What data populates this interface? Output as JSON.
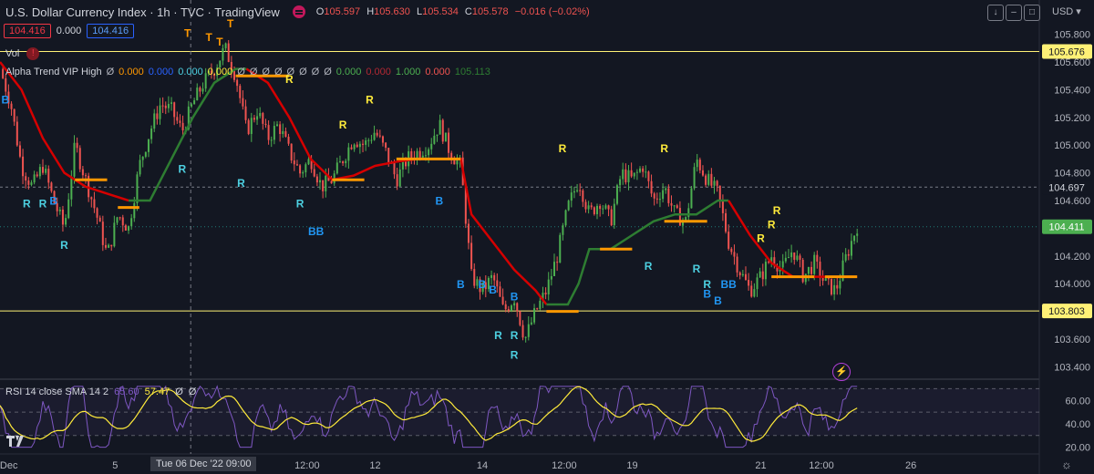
{
  "header": {
    "title": "U.S. Dollar Currency Index · 1h · TVC · TradingView",
    "open": "105.597",
    "high": "105.630",
    "low": "105.534",
    "close": "105.578",
    "change": "−0.016 (−0.02%)",
    "o_label": "O",
    "h_label": "H",
    "l_label": "L",
    "c_label": "C",
    "currency": "USD"
  },
  "row2": {
    "price_left": "104.416",
    "mid": "0.000",
    "price_right": "104.416"
  },
  "vol": {
    "label": "Vol",
    "warn": "!"
  },
  "alpha": {
    "label": "Alpha Trend VIP High",
    "values": [
      {
        "v": "Ø",
        "c": "#b2b5be"
      },
      {
        "v": "0.000",
        "c": "#ff9800"
      },
      {
        "v": "0.000",
        "c": "#2962ff"
      },
      {
        "v": "0.000",
        "c": "#4dd0e1"
      },
      {
        "v": "0.000",
        "c": "#ffeb3b"
      },
      {
        "v": "Ø",
        "c": "#b2b5be"
      },
      {
        "v": "Ø",
        "c": "#b2b5be"
      },
      {
        "v": "Ø",
        "c": "#b2b5be"
      },
      {
        "v": "Ø",
        "c": "#b2b5be"
      },
      {
        "v": "Ø",
        "c": "#b2b5be"
      },
      {
        "v": "Ø",
        "c": "#b2b5be"
      },
      {
        "v": "Ø",
        "c": "#b2b5be"
      },
      {
        "v": "Ø",
        "c": "#b2b5be"
      },
      {
        "v": "0.000",
        "c": "#4caf50"
      },
      {
        "v": "0.000",
        "c": "#b22833"
      },
      {
        "v": "1.000",
        "c": "#4caf50"
      },
      {
        "v": "0.000",
        "c": "#ef5350"
      },
      {
        "v": "105.113",
        "c": "#2e7d32"
      }
    ]
  },
  "rsi": {
    "label": "RSI 14 close SMA 14 2",
    "v1": "65.60",
    "v2": "57.47",
    "v3": "Ø",
    "v4": "Ø",
    "ticks": [
      "60.00",
      "40.00",
      "20.00"
    ],
    "levels": [
      70,
      50,
      30
    ],
    "range": [
      15,
      75
    ]
  },
  "price_axis": {
    "ticks": [
      "105.800",
      "105.600",
      "105.400",
      "105.200",
      "105.000",
      "104.800",
      "104.600",
      "104.400",
      "104.200",
      "104.000",
      "103.800",
      "103.600",
      "103.400"
    ],
    "tick_values": [
      105.8,
      105.6,
      105.4,
      105.2,
      105.0,
      104.8,
      104.6,
      104.4,
      104.2,
      104.0,
      103.8,
      103.6,
      103.4
    ],
    "min": 103.35,
    "max": 105.85
  },
  "price_labels": [
    {
      "text": "105.676",
      "value": 105.676,
      "style": "yellow"
    },
    {
      "text": "104.697",
      "value": 104.697,
      "style": "dark"
    },
    {
      "text": "104.411",
      "value": 104.411,
      "style": "green"
    },
    {
      "text": "103.803",
      "value": 103.803,
      "style": "yellow"
    }
  ],
  "time_axis": {
    "labels": [
      {
        "t": "Dec",
        "x": 0.5
      },
      {
        "t": "5",
        "x": 11
      },
      {
        "t": "12:00",
        "x": 28
      },
      {
        "t": "12",
        "x": 35
      },
      {
        "t": "14",
        "x": 45
      },
      {
        "t": "12:00",
        "x": 52
      },
      {
        "t": "19",
        "x": 59
      },
      {
        "t": "21",
        "x": 71
      },
      {
        "t": "12:00",
        "x": 76
      },
      {
        "t": "26",
        "x": 85
      }
    ],
    "selected": "Tue 06 Dec '22  09:00",
    "crosshair_x": 17.8,
    "range": [
      0,
      97
    ]
  },
  "chart_data": {
    "type": "candlestick",
    "title": "U.S. Dollar Currency Index · 1h · TVC · TradingView",
    "xlabel": "",
    "ylabel": "",
    "ylim": [
      103.35,
      105.85
    ],
    "x_unit": "trading-hour index",
    "horizontal_lines": [
      105.676,
      103.803
    ],
    "close_path": [
      [
        0,
        105.55
      ],
      [
        1,
        105.3
      ],
      [
        2,
        104.85
      ],
      [
        3,
        104.7
      ],
      [
        4,
        104.85
      ],
      [
        5,
        104.6
      ],
      [
        6,
        104.4
      ],
      [
        7,
        105.0
      ],
      [
        8,
        104.75
      ],
      [
        9,
        104.5
      ],
      [
        10,
        104.2
      ],
      [
        11,
        104.5
      ],
      [
        12,
        104.4
      ],
      [
        13,
        104.85
      ],
      [
        14,
        105.1
      ],
      [
        15,
        105.3
      ],
      [
        16,
        105.25
      ],
      [
        17,
        105.1
      ],
      [
        18,
        105.3
      ],
      [
        19,
        105.45
      ],
      [
        20,
        105.55
      ],
      [
        21,
        105.7
      ],
      [
        22,
        105.5
      ],
      [
        23,
        105.1
      ],
      [
        24,
        105.25
      ],
      [
        25,
        105.05
      ],
      [
        26,
        105.15
      ],
      [
        27,
        104.95
      ],
      [
        28,
        104.8
      ],
      [
        29,
        104.9
      ],
      [
        30,
        104.7
      ],
      [
        31,
        104.75
      ],
      [
        32,
        104.9
      ],
      [
        33,
        105.05
      ],
      [
        34,
        105.0
      ],
      [
        35,
        105.1
      ],
      [
        36,
        104.95
      ],
      [
        37,
        104.75
      ],
      [
        38,
        104.9
      ],
      [
        39,
        104.95
      ],
      [
        40,
        105.0
      ],
      [
        41,
        105.15
      ],
      [
        42,
        104.95
      ],
      [
        43,
        104.85
      ],
      [
        44,
        104.05
      ],
      [
        45,
        103.95
      ],
      [
        46,
        104.05
      ],
      [
        47,
        103.8
      ],
      [
        48,
        103.9
      ],
      [
        49,
        103.6
      ],
      [
        50,
        103.8
      ],
      [
        51,
        103.95
      ],
      [
        52,
        104.2
      ],
      [
        53,
        104.55
      ],
      [
        54,
        104.75
      ],
      [
        55,
        104.5
      ],
      [
        56,
        104.6
      ],
      [
        57,
        104.45
      ],
      [
        58,
        104.8
      ],
      [
        59,
        104.75
      ],
      [
        60,
        104.85
      ],
      [
        61,
        104.6
      ],
      [
        62,
        104.7
      ],
      [
        63,
        104.5
      ],
      [
        64,
        104.45
      ],
      [
        65,
        104.9
      ],
      [
        66,
        104.75
      ],
      [
        67,
        104.65
      ],
      [
        68,
        104.3
      ],
      [
        69,
        104.1
      ],
      [
        70,
        103.95
      ],
      [
        71,
        104.05
      ],
      [
        72,
        104.2
      ],
      [
        73,
        104.1
      ],
      [
        74,
        104.25
      ],
      [
        75,
        104.05
      ],
      [
        76,
        104.15
      ],
      [
        77,
        104.0
      ],
      [
        78,
        103.95
      ],
      [
        79,
        104.2
      ],
      [
        80,
        104.42
      ]
    ],
    "x_scale_max": 97,
    "alpha_trend_line": {
      "red": [
        [
          0,
          105.6
        ],
        [
          2,
          105.4
        ],
        [
          4,
          105.05
        ],
        [
          6,
          104.8
        ],
        [
          8,
          104.7
        ],
        [
          10,
          104.65
        ],
        [
          12,
          104.6
        ]
      ],
      "green": [
        [
          12,
          104.6
        ],
        [
          14,
          104.6
        ],
        [
          16,
          104.9
        ],
        [
          18,
          105.2
        ],
        [
          20,
          105.45
        ],
        [
          22,
          105.55
        ],
        [
          23,
          105.55
        ]
      ],
      "red2": [
        [
          23,
          105.55
        ],
        [
          25,
          105.45
        ],
        [
          27,
          105.2
        ],
        [
          29,
          104.9
        ],
        [
          31,
          104.75
        ],
        [
          33,
          104.78
        ],
        [
          35,
          104.85
        ],
        [
          37,
          104.88
        ],
        [
          39,
          104.9
        ],
        [
          41,
          104.9
        ],
        [
          43,
          104.9
        ],
        [
          44,
          104.5
        ],
        [
          46,
          104.3
        ],
        [
          48,
          104.1
        ],
        [
          50,
          103.95
        ],
        [
          51,
          103.85
        ]
      ],
      "green2": [
        [
          51,
          103.85
        ],
        [
          53,
          103.85
        ],
        [
          54,
          104.0
        ],
        [
          55,
          104.25
        ],
        [
          57,
          104.25
        ],
        [
          59,
          104.35
        ],
        [
          61,
          104.45
        ],
        [
          63,
          104.5
        ],
        [
          65,
          104.5
        ],
        [
          67,
          104.6
        ],
        [
          68,
          104.6
        ]
      ],
      "red3": [
        [
          68,
          104.6
        ],
        [
          70,
          104.35
        ],
        [
          72,
          104.15
        ],
        [
          74,
          104.05
        ],
        [
          76,
          104.05
        ],
        [
          78,
          104.05
        ],
        [
          80,
          104.05
        ]
      ]
    },
    "orange_levels": [
      [
        7,
        104.75,
        10,
        104.75
      ],
      [
        11,
        104.55,
        13,
        104.55
      ],
      [
        22,
        105.5,
        27,
        105.5
      ],
      [
        31,
        104.75,
        34,
        104.75
      ],
      [
        37,
        104.9,
        43,
        104.9
      ],
      [
        51,
        103.8,
        54,
        103.8
      ],
      [
        56,
        104.25,
        59,
        104.25
      ],
      [
        62,
        104.45,
        66,
        104.45
      ],
      [
        72,
        104.05,
        76,
        104.05
      ],
      [
        77,
        104.05,
        80,
        104.05
      ]
    ],
    "markers": [
      {
        "t": "B",
        "x": 0.5,
        "y": 105.3,
        "c": "#2196f3"
      },
      {
        "t": "R",
        "x": 2.5,
        "y": 104.55,
        "c": "#4dd0e1"
      },
      {
        "t": "R",
        "x": 4,
        "y": 104.55,
        "c": "#4dd0e1"
      },
      {
        "t": "B",
        "x": 5,
        "y": 104.57,
        "c": "#2196f3"
      },
      {
        "t": "R",
        "x": 6,
        "y": 104.25,
        "c": "#4dd0e1"
      },
      {
        "t": "T",
        "x": 17.5,
        "y": 105.78,
        "c": "#ff9800"
      },
      {
        "t": "T",
        "x": 19.5,
        "y": 105.75,
        "c": "#ff9800"
      },
      {
        "t": "T",
        "x": 20.5,
        "y": 105.72,
        "c": "#ff9800"
      },
      {
        "t": "T",
        "x": 21.5,
        "y": 105.85,
        "c": "#ff9800"
      },
      {
        "t": "R",
        "x": 17,
        "y": 104.8,
        "c": "#4dd0e1"
      },
      {
        "t": "R",
        "x": 22.5,
        "y": 104.7,
        "c": "#4dd0e1"
      },
      {
        "t": "R",
        "x": 27,
        "y": 105.45,
        "c": "#ffeb3b"
      },
      {
        "t": "R",
        "x": 28,
        "y": 104.55,
        "c": "#4dd0e1"
      },
      {
        "t": "R",
        "x": 32,
        "y": 105.12,
        "c": "#ffeb3b"
      },
      {
        "t": "R",
        "x": 34.5,
        "y": 105.3,
        "c": "#ffeb3b"
      },
      {
        "t": "BB",
        "x": 29.5,
        "y": 104.35,
        "c": "#2196f3"
      },
      {
        "t": "B",
        "x": 41,
        "y": 104.57,
        "c": "#2196f3"
      },
      {
        "t": "B",
        "x": 43,
        "y": 103.97,
        "c": "#2196f3"
      },
      {
        "t": "B",
        "x": 45,
        "y": 103.97,
        "c": "#2196f3"
      },
      {
        "t": "B",
        "x": 46,
        "y": 103.93,
        "c": "#2196f3"
      },
      {
        "t": "B",
        "x": 48,
        "y": 103.88,
        "c": "#2196f3"
      },
      {
        "t": "R",
        "x": 46.5,
        "y": 103.6,
        "c": "#4dd0e1"
      },
      {
        "t": "R",
        "x": 48,
        "y": 103.6,
        "c": "#4dd0e1"
      },
      {
        "t": "R",
        "x": 48,
        "y": 103.46,
        "c": "#4dd0e1"
      },
      {
        "t": "R",
        "x": 52.5,
        "y": 104.95,
        "c": "#ffeb3b"
      },
      {
        "t": "R",
        "x": 62,
        "y": 104.95,
        "c": "#ffeb3b"
      },
      {
        "t": "R",
        "x": 60.5,
        "y": 104.1,
        "c": "#4dd0e1"
      },
      {
        "t": "R",
        "x": 65,
        "y": 104.08,
        "c": "#4dd0e1"
      },
      {
        "t": "R",
        "x": 66,
        "y": 103.97,
        "c": "#4dd0e1"
      },
      {
        "t": "B",
        "x": 66,
        "y": 103.9,
        "c": "#2196f3"
      },
      {
        "t": "B",
        "x": 67,
        "y": 103.85,
        "c": "#2196f3"
      },
      {
        "t": "BB",
        "x": 68,
        "y": 103.97,
        "c": "#2196f3"
      },
      {
        "t": "R",
        "x": 71,
        "y": 104.3,
        "c": "#ffeb3b"
      },
      {
        "t": "R",
        "x": 72,
        "y": 104.4,
        "c": "#ffeb3b"
      },
      {
        "t": "R",
        "x": 72.5,
        "y": 104.5,
        "c": "#ffeb3b"
      }
    ]
  }
}
